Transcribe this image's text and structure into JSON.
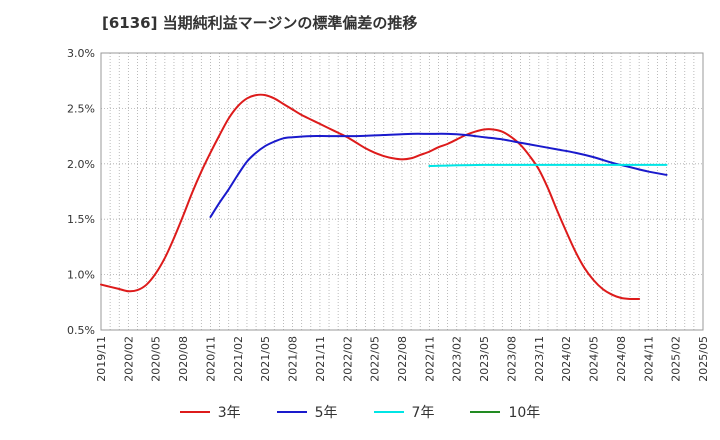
{
  "title": "[6136]  当期純利益マージンの標準偏差の推移",
  "chart_data": {
    "type": "line",
    "x_ticks": [
      "2019/11",
      "2020/02",
      "2020/05",
      "2020/08",
      "2020/11",
      "2021/02",
      "2021/05",
      "2021/08",
      "2021/11",
      "2022/02",
      "2022/05",
      "2022/08",
      "2022/11",
      "2023/02",
      "2023/05",
      "2023/08",
      "2023/11",
      "2024/02",
      "2024/05",
      "2024/08",
      "2024/11",
      "2025/02",
      "2025/05"
    ],
    "y_ticks": [
      "3.0%",
      "2.5%",
      "2.0%",
      "1.5%",
      "1.0%",
      "0.5%"
    ],
    "ylim": [
      0.5,
      3.0
    ],
    "y_unit": "%",
    "grid": true,
    "legend_position": "bottom",
    "series": [
      {
        "name": "3年",
        "color": "#dd1b1b",
        "points": [
          [
            "2019/11",
            0.91
          ],
          [
            "2019/12",
            0.89
          ],
          [
            "2020/01",
            0.87
          ],
          [
            "2020/02",
            0.85
          ],
          [
            "2020/03",
            0.86
          ],
          [
            "2020/04",
            0.91
          ],
          [
            "2020/05",
            1.01
          ],
          [
            "2020/06",
            1.15
          ],
          [
            "2020/07",
            1.33
          ],
          [
            "2020/08",
            1.53
          ],
          [
            "2020/09",
            1.74
          ],
          [
            "2020/10",
            1.93
          ],
          [
            "2020/11",
            2.1
          ],
          [
            "2020/12",
            2.26
          ],
          [
            "2021/01",
            2.41
          ],
          [
            "2021/02",
            2.52
          ],
          [
            "2021/03",
            2.59
          ],
          [
            "2021/04",
            2.62
          ],
          [
            "2021/05",
            2.62
          ],
          [
            "2021/06",
            2.59
          ],
          [
            "2021/07",
            2.54
          ],
          [
            "2021/08",
            2.49
          ],
          [
            "2021/09",
            2.44
          ],
          [
            "2021/10",
            2.4
          ],
          [
            "2021/11",
            2.36
          ],
          [
            "2021/12",
            2.32
          ],
          [
            "2022/01",
            2.28
          ],
          [
            "2022/02",
            2.24
          ],
          [
            "2022/03",
            2.19
          ],
          [
            "2022/04",
            2.14
          ],
          [
            "2022/05",
            2.1
          ],
          [
            "2022/06",
            2.07
          ],
          [
            "2022/07",
            2.05
          ],
          [
            "2022/08",
            2.04
          ],
          [
            "2022/09",
            2.05
          ],
          [
            "2022/10",
            2.08
          ],
          [
            "2022/11",
            2.11
          ],
          [
            "2022/12",
            2.15
          ],
          [
            "2023/01",
            2.18
          ],
          [
            "2023/02",
            2.22
          ],
          [
            "2023/03",
            2.26
          ],
          [
            "2023/04",
            2.29
          ],
          [
            "2023/05",
            2.31
          ],
          [
            "2023/06",
            2.31
          ],
          [
            "2023/07",
            2.29
          ],
          [
            "2023/08",
            2.24
          ],
          [
            "2023/09",
            2.17
          ],
          [
            "2023/10",
            2.07
          ],
          [
            "2023/11",
            1.95
          ],
          [
            "2023/12",
            1.78
          ],
          [
            "2024/01",
            1.58
          ],
          [
            "2024/02",
            1.39
          ],
          [
            "2024/03",
            1.21
          ],
          [
            "2024/04",
            1.06
          ],
          [
            "2024/05",
            0.95
          ],
          [
            "2024/06",
            0.87
          ],
          [
            "2024/07",
            0.82
          ],
          [
            "2024/08",
            0.79
          ],
          [
            "2024/09",
            0.78
          ],
          [
            "2024/10",
            0.78
          ]
        ]
      },
      {
        "name": "5年",
        "color": "#1a1acc",
        "points": [
          [
            "2020/11",
            1.52
          ],
          [
            "2020/12",
            1.65
          ],
          [
            "2021/01",
            1.77
          ],
          [
            "2021/02",
            1.9
          ],
          [
            "2021/03",
            2.02
          ],
          [
            "2021/04",
            2.1
          ],
          [
            "2021/05",
            2.16
          ],
          [
            "2021/06",
            2.2
          ],
          [
            "2021/07",
            2.23
          ],
          [
            "2021/08",
            2.24
          ],
          [
            "2021/10",
            2.25
          ],
          [
            "2021/12",
            2.25
          ],
          [
            "2022/03",
            2.25
          ],
          [
            "2022/06",
            2.26
          ],
          [
            "2022/09",
            2.27
          ],
          [
            "2022/11",
            2.27
          ],
          [
            "2023/01",
            2.27
          ],
          [
            "2023/03",
            2.26
          ],
          [
            "2023/05",
            2.24
          ],
          [
            "2023/07",
            2.22
          ],
          [
            "2023/09",
            2.19
          ],
          [
            "2023/11",
            2.16
          ],
          [
            "2024/01",
            2.13
          ],
          [
            "2024/03",
            2.1
          ],
          [
            "2024/05",
            2.06
          ],
          [
            "2024/07",
            2.01
          ],
          [
            "2024/09",
            1.97
          ],
          [
            "2024/11",
            1.93
          ],
          [
            "2025/01",
            1.9
          ]
        ]
      },
      {
        "name": "7年",
        "color": "#00e5e5",
        "points": [
          [
            "2022/11",
            1.98
          ],
          [
            "2023/05",
            1.99
          ],
          [
            "2023/11",
            1.99
          ],
          [
            "2024/05",
            1.99
          ],
          [
            "2025/01",
            1.99
          ]
        ]
      },
      {
        "name": "10年",
        "color": "#228b22",
        "points": []
      }
    ]
  }
}
